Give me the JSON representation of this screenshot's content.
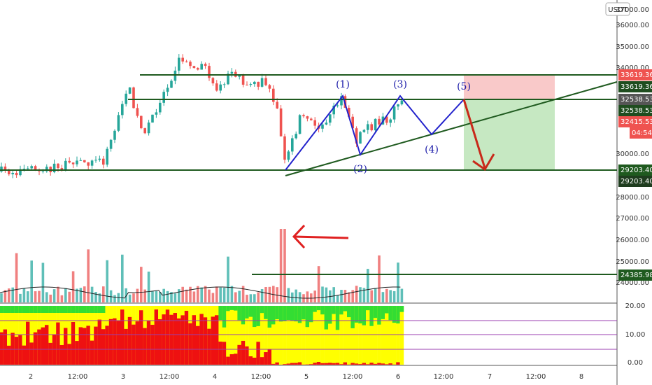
{
  "price_axis": {
    "unit": "USDT",
    "labels": [
      "37000.00",
      "36000.00",
      "35000.00",
      "34000.00",
      "30000.00",
      "28000.00",
      "27000.00",
      "26000.00",
      "25000.00",
      "24000.00"
    ]
  },
  "price_tags": [
    "33619.36",
    "33619.36",
    "32538.53",
    "32538.53",
    "32415.53",
    "04:54",
    "29203.40",
    "29203.40",
    "24385.98"
  ],
  "indicator_axis": [
    "20.00",
    "10.00",
    "0.00"
  ],
  "time_axis": [
    "2",
    "12:00",
    "3",
    "12:00",
    "4",
    "12:00",
    "5",
    "12:00",
    "6",
    "12:00",
    "7",
    "12:00",
    "8"
  ],
  "wave_labels": [
    "(1)",
    "(2)",
    "(3)",
    "(4)",
    "(5)"
  ]
}
